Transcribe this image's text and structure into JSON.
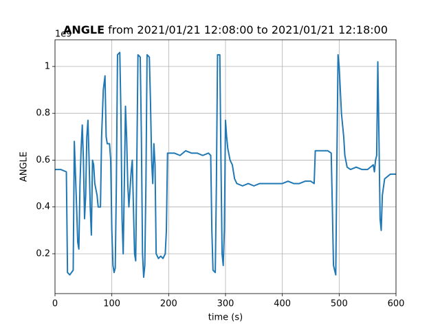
{
  "chart_data": {
    "type": "line",
    "title_parts": [
      "ANGLE",
      "from 2021/01/21 12:08:00 to 2021/01/21 12:18:00"
    ],
    "x_label": "time (s)",
    "y_label": "ANGLE",
    "y_offset_label": "1e9",
    "xlim": [
      0,
      600
    ],
    "xticks": [
      0,
      100,
      200,
      300,
      400,
      500,
      600
    ],
    "ylim": [
      0.03,
      1.114
    ],
    "yticks": [
      0.2,
      0.4,
      0.6,
      0.8,
      1.0
    ],
    "grid": true,
    "x": [
      0,
      10,
      20,
      22,
      26,
      32,
      34,
      38,
      40,
      42,
      44,
      46,
      48,
      50,
      52,
      54,
      56,
      58,
      60,
      62,
      64,
      66,
      68,
      70,
      74,
      76,
      80,
      82,
      85,
      88,
      90,
      92,
      96,
      98,
      100,
      102,
      104,
      106,
      108,
      110,
      114,
      116,
      118,
      120,
      122,
      124,
      126,
      128,
      130,
      134,
      136,
      138,
      140,
      142,
      144,
      146,
      150,
      152,
      154,
      156,
      158,
      160,
      162,
      166,
      168,
      170,
      172,
      174,
      176,
      178,
      182,
      186,
      190,
      194,
      196,
      198,
      210,
      220,
      230,
      240,
      250,
      260,
      270,
      274,
      276,
      278,
      282,
      284,
      286,
      290,
      292,
      294,
      296,
      298,
      300,
      302,
      304,
      308,
      312,
      316,
      320,
      330,
      340,
      350,
      360,
      370,
      380,
      390,
      400,
      410,
      420,
      430,
      440,
      450,
      456,
      458,
      470,
      480,
      486,
      488,
      490,
      494,
      496,
      498,
      500,
      504,
      508,
      510,
      514,
      520,
      530,
      540,
      550,
      560,
      562,
      564,
      566,
      568,
      570,
      572,
      574,
      576,
      580,
      590,
      600
    ],
    "series": [
      {
        "name": "ANGLE",
        "color": "#1f77b4",
        "values": [
          0.56,
          0.56,
          0.55,
          0.12,
          0.11,
          0.13,
          0.68,
          0.4,
          0.25,
          0.22,
          0.5,
          0.65,
          0.75,
          0.6,
          0.35,
          0.45,
          0.7,
          0.77,
          0.6,
          0.4,
          0.28,
          0.6,
          0.58,
          0.5,
          0.45,
          0.4,
          0.4,
          0.7,
          0.9,
          0.96,
          0.7,
          0.67,
          0.67,
          0.6,
          0.3,
          0.15,
          0.12,
          0.14,
          0.5,
          1.05,
          1.06,
          0.8,
          0.35,
          0.2,
          0.5,
          0.83,
          0.7,
          0.5,
          0.4,
          0.55,
          0.6,
          0.4,
          0.2,
          0.17,
          0.6,
          1.05,
          1.04,
          0.7,
          0.2,
          0.1,
          0.15,
          0.5,
          1.05,
          1.04,
          0.85,
          0.6,
          0.5,
          0.67,
          0.58,
          0.2,
          0.18,
          0.19,
          0.18,
          0.2,
          0.3,
          0.63,
          0.63,
          0.62,
          0.64,
          0.63,
          0.63,
          0.62,
          0.63,
          0.62,
          0.3,
          0.13,
          0.12,
          0.5,
          1.05,
          1.05,
          0.6,
          0.2,
          0.15,
          0.3,
          0.77,
          0.7,
          0.65,
          0.6,
          0.58,
          0.52,
          0.5,
          0.49,
          0.5,
          0.49,
          0.5,
          0.5,
          0.5,
          0.5,
          0.5,
          0.51,
          0.5,
          0.5,
          0.51,
          0.51,
          0.5,
          0.64,
          0.64,
          0.64,
          0.63,
          0.4,
          0.15,
          0.11,
          0.6,
          1.05,
          1.0,
          0.8,
          0.7,
          0.62,
          0.57,
          0.56,
          0.57,
          0.56,
          0.56,
          0.58,
          0.55,
          0.6,
          0.62,
          1.02,
          0.7,
          0.35,
          0.3,
          0.45,
          0.52,
          0.54,
          0.54
        ]
      }
    ]
  }
}
